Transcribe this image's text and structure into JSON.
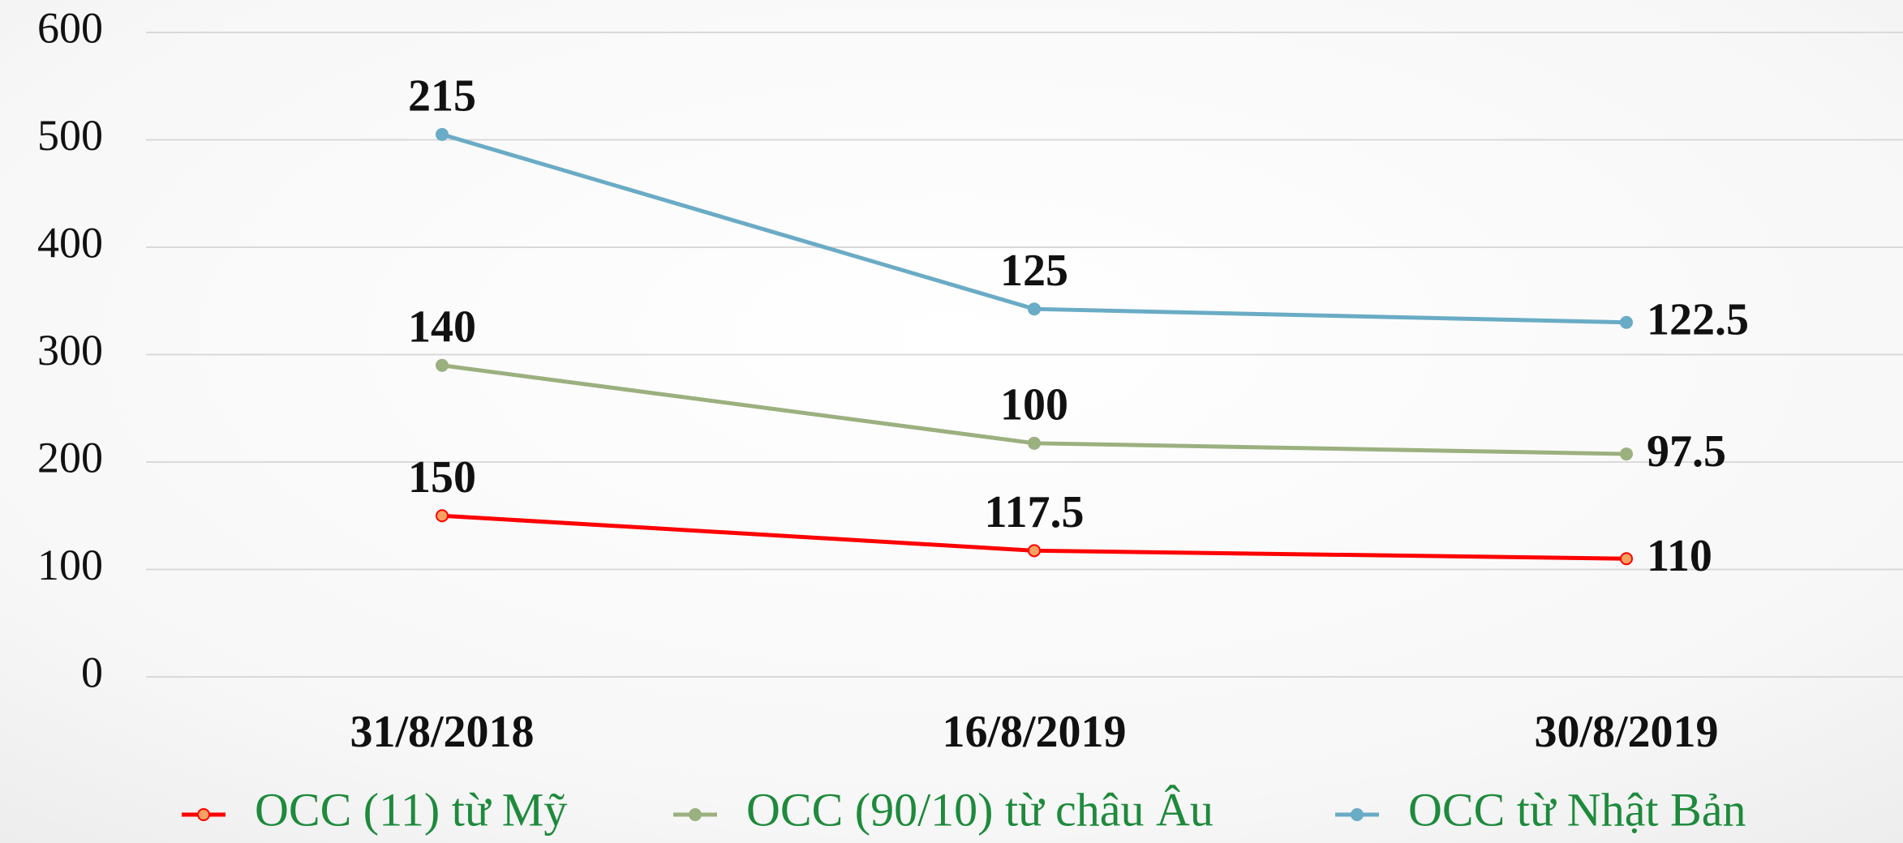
{
  "chart_data": {
    "type": "line",
    "stacked": true,
    "categories": [
      "31/8/2018",
      "16/8/2019",
      "30/8/2019"
    ],
    "series": [
      {
        "name": "OCC (11) từ Mỹ",
        "color": "#ff0000",
        "marker_fill": "#f4a261",
        "values": [
          150,
          117.5,
          110
        ]
      },
      {
        "name": "OCC (90/10) từ châu Âu",
        "color": "#9bb07f",
        "marker_fill": "#9bb07f",
        "values": [
          140,
          100,
          97.5
        ]
      },
      {
        "name": "OCC từ Nhật Bản",
        "color": "#6aabc5",
        "marker_fill": "#6aabc5",
        "values": [
          215,
          125,
          122.5
        ]
      }
    ],
    "ylim": [
      0,
      600
    ],
    "yticks": [
      0,
      100,
      200,
      300,
      400,
      500,
      600
    ],
    "grid": true,
    "legend": "bottom"
  }
}
